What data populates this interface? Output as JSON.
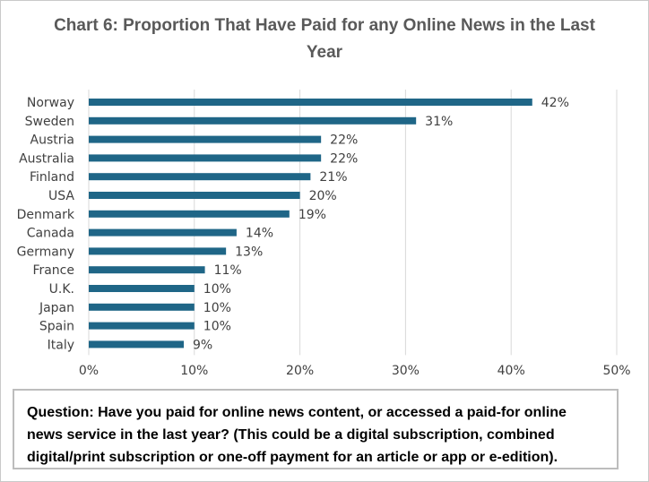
{
  "chart_data": {
    "type": "bar",
    "orientation": "horizontal",
    "title": "Chart 6: Proportion That Have Paid for any Online News in the Last Year",
    "categories": [
      "Norway",
      "Sweden",
      "Austria",
      "Australia",
      "Finland",
      "USA",
      "Denmark",
      "Canada",
      "Germany",
      "France",
      "U.K.",
      "Japan",
      "Spain",
      "Italy"
    ],
    "values": [
      42,
      31,
      22,
      22,
      21,
      20,
      19,
      14,
      13,
      11,
      10,
      10,
      10,
      9
    ],
    "data_labels": [
      "42%",
      "31%",
      "22%",
      "22%",
      "21%",
      "20%",
      "19%",
      "14%",
      "13%",
      "11%",
      "10%",
      "10%",
      "10%",
      "9%"
    ],
    "x_ticks": [
      0,
      10,
      20,
      30,
      40,
      50
    ],
    "x_tick_labels": [
      "0%",
      "10%",
      "20%",
      "30%",
      "40%",
      "50%"
    ],
    "xlim": [
      0,
      50
    ],
    "xlabel": "",
    "ylabel": "",
    "grid": true,
    "bar_color": "#1f6687",
    "gridline_color": "#d9d9d9"
  },
  "note": {
    "text": "Question: Have you paid for online news content, or accessed a paid-for online news service in the last year? (This could be a digital subscription, combined digital/print subscription or one-off payment for an article or app or e-edition)."
  }
}
